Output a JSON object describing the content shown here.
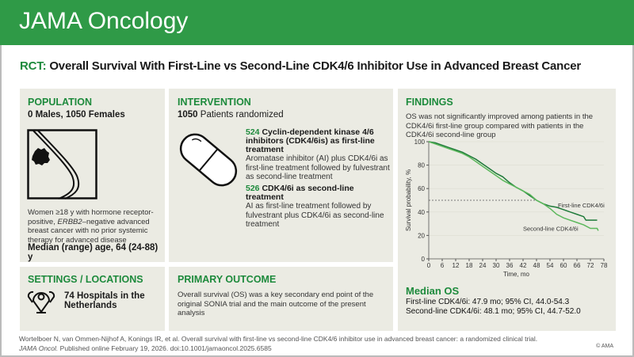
{
  "header": {
    "journal": "JAMA Oncology"
  },
  "title": {
    "prefix": "RCT:",
    "text": "Overall Survival With First-Line vs Second-Line CDK4/6 Inhibitor Use in Advanced Breast Cancer"
  },
  "population": {
    "heading": "POPULATION",
    "sex": "0 Males, 1050 Females",
    "description_pre": "Women ≥18 y with hormone receptor-positive, ",
    "description_ital": "ERBB2",
    "description_post": "–negative advanced breast cancer with no prior systemic therapy for advanced disease",
    "age": "Median (range) age, 64 (24-88) y",
    "icon": "breast-tumor-icon"
  },
  "intervention": {
    "heading": "INTERVENTION",
    "randomized_n": "1050",
    "randomized_label": "Patients randomized",
    "icon": "pill-capsule-icon",
    "arms": [
      {
        "n": "524",
        "title": "Cyclin-dependent kinase 4/6 inhibitors (CDK4/6is) as first-line treatment",
        "desc": "Aromatase inhibitor (AI) plus CDK4/6i as first-line treatment followed by fulvestrant as second-line treatment"
      },
      {
        "n": "526",
        "title": "CDK4/6i as second-line treatment",
        "desc": "AI as first-line treatment followed by fulvestrant plus CDK4/6i as second-line treatment"
      }
    ]
  },
  "settings": {
    "heading": "SETTINGS / LOCATIONS",
    "text": "74 Hospitals in the Netherlands",
    "icon": "map-pins-icon"
  },
  "outcome": {
    "heading": "PRIMARY OUTCOME",
    "text": "Overall survival (OS) was a key secondary end point of the original SONIA trial and the main outcome of the present analysis"
  },
  "findings": {
    "heading": "FINDINGS",
    "text": "OS was not significantly improved among patients in the CDK4/6i first-line group compared with patients in the CDK4/6i second-line group",
    "median_heading": "Median OS",
    "median_lines": [
      "First-line CDK4/6i: 47.9 mo; 95% CI, 44.0-54.3",
      "Second-line CDK4/6i: 48.1 mo; 95% CI, 44.7-52.0"
    ]
  },
  "chart_data": {
    "type": "line",
    "xlabel": "Time, mo",
    "ylabel": "Survival probability, %",
    "xlim": [
      0,
      78
    ],
    "ylim": [
      0,
      100
    ],
    "xticks": [
      0,
      6,
      12,
      18,
      24,
      30,
      36,
      42,
      48,
      54,
      60,
      66,
      72,
      78
    ],
    "yticks": [
      0,
      20,
      40,
      60,
      80,
      100
    ],
    "reference_line_y": 50,
    "series": [
      {
        "name": "First-line CDK4/6i",
        "color": "#1f7a3a",
        "x": [
          0,
          3,
          6,
          9,
          12,
          15,
          18,
          21,
          24,
          27,
          30,
          33,
          36,
          39,
          42,
          45,
          48,
          51,
          54,
          57,
          60,
          63,
          66,
          69,
          70,
          72,
          75
        ],
        "y": [
          100,
          99,
          97,
          95,
          93,
          91,
          88,
          85,
          81,
          77,
          73,
          70,
          65,
          61,
          58,
          54,
          50,
          47,
          45,
          44,
          42,
          40,
          38,
          36,
          33,
          33,
          33
        ]
      },
      {
        "name": "Second-line CDK4/6i",
        "color": "#5cb85c",
        "x": [
          0,
          3,
          6,
          9,
          12,
          15,
          18,
          21,
          24,
          27,
          30,
          33,
          36,
          39,
          42,
          45,
          48,
          51,
          54,
          57,
          60,
          63,
          66,
          69,
          72,
          75,
          75.5
        ],
        "y": [
          100,
          98,
          96,
          94,
          92,
          90,
          87,
          83,
          79,
          75,
          71,
          67,
          64,
          61,
          58,
          55,
          50,
          47,
          43,
          38,
          35,
          33,
          31,
          29,
          26,
          26,
          24
        ]
      }
    ]
  },
  "footer": {
    "line1": "Wortelboer N, van Ommen-Nijhof A, Konings IR, et al. Overall survival with first-line vs second-line CDK4/6 inhibitor use in advanced breast cancer: a randomized clinical trial.",
    "journal_abbr": "JAMA Oncol.",
    "line2": "Published online February 19, 2026. doi:10.1001/jamaoncol.2025.6585",
    "copyright": "© AMA"
  }
}
